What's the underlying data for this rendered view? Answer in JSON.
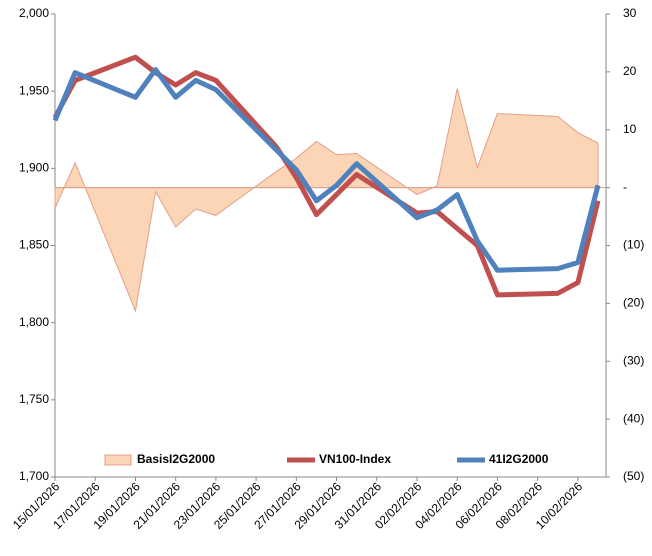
{
  "chart_data": {
    "type": "combo",
    "x": [
      "15/01/2026",
      "16/01/2026",
      "19/01/2026",
      "20/01/2026",
      "21/01/2026",
      "22/01/2026",
      "23/01/2026",
      "26/01/2026",
      "27/01/2026",
      "28/01/2026",
      "29/01/2026",
      "30/01/2026",
      "02/02/2026",
      "03/02/2026",
      "04/02/2026",
      "05/02/2026",
      "06/02/2026",
      "09/02/2026",
      "10/02/2026",
      "11/02/2026"
    ],
    "xlim": [
      "15/01/2026",
      "11/02/2026"
    ],
    "xticks": [
      "15/01/2026",
      "17/01/2026",
      "19/01/2026",
      "21/01/2026",
      "23/01/2026",
      "25/01/2026",
      "27/01/2026",
      "29/01/2026",
      "31/01/2026",
      "02/02/2026",
      "04/02/2026",
      "06/02/2026",
      "08/02/2026",
      "10/02/2026"
    ],
    "ylim": [
      1700,
      2000
    ],
    "yticks": [
      {
        "value": 1700,
        "label": "1,700"
      },
      {
        "value": 1750,
        "label": "1,750"
      },
      {
        "value": 1800,
        "label": "1,800"
      },
      {
        "value": 1850,
        "label": "1,850"
      },
      {
        "value": 1900,
        "label": "1,900"
      },
      {
        "value": 1950,
        "label": "1,950"
      },
      {
        "value": 2000,
        "label": "2,000"
      }
    ],
    "y2lim": [
      -50,
      30
    ],
    "y2ticks": [
      {
        "value": -50,
        "label": "(50)"
      },
      {
        "value": -40,
        "label": "(40)"
      },
      {
        "value": -30,
        "label": "(30)"
      },
      {
        "value": -20,
        "label": "(20)"
      },
      {
        "value": -10,
        "label": "(10)"
      },
      {
        "value": 0,
        "label": "-"
      },
      10,
      20,
      30
    ],
    "legend": "bottom",
    "series": [
      {
        "name": "BasisI2G2000",
        "kind": "area",
        "axis": "y2",
        "color": "#fbd5b5",
        "values": [
          -3.6,
          4.3,
          -21.3,
          -0.7,
          -6.8,
          -3.7,
          -4.8,
          2.8,
          5.1,
          8.0,
          5.7,
          5.9,
          -1.2,
          0.3,
          17.1,
          3.5,
          12.8,
          12.3,
          9.5,
          7.7
        ]
      },
      {
        "name": "VN100-Index",
        "kind": "line",
        "color": "#c0504d",
        "values": [
          1933,
          1957,
          1972,
          1962,
          1954,
          1962,
          1957,
          1914,
          1894,
          1870,
          1883,
          1896,
          1871,
          1872,
          1861,
          1850,
          1818,
          1819,
          1826,
          1879
        ]
      },
      {
        "name": "41I2G2000",
        "kind": "line",
        "color": "#4f81bd",
        "values": [
          1931,
          1962,
          1946,
          1964,
          1946,
          1957,
          1951,
          1912,
          1899,
          1879,
          1889,
          1903,
          1868,
          1873,
          1883,
          1853,
          1834,
          1835,
          1839,
          1889
        ]
      }
    ]
  }
}
